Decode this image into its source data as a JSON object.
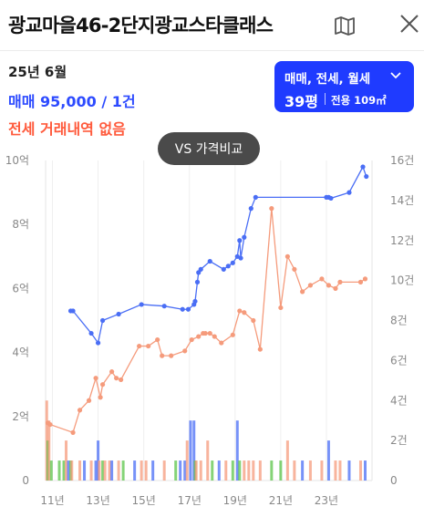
{
  "header": {
    "title": "광교마을46-2단지광교스타클래스",
    "map_icon": "map-icon",
    "close_icon": "close-icon"
  },
  "summary": {
    "date": "25년 6월",
    "sale": "매매 95,000 / 1건",
    "jeonse": "전세 거래내역 없음"
  },
  "filter": {
    "types": "매매, 전세, 월세",
    "pyeong": "39평",
    "area": "전용 109㎡"
  },
  "compare_button": "VS 가격비교",
  "colors": {
    "sale": "#4a6ef5",
    "jeonse": "#f59b7c",
    "green": "#5cc44a",
    "accent": "#1f3bff"
  },
  "chart_data": {
    "type": "line",
    "x_ticks": [
      "11년",
      "13년",
      "15년",
      "17년",
      "19년",
      "21년",
      "23년"
    ],
    "y_left_ticks": [
      "0",
      "2억",
      "4억",
      "6억",
      "8억",
      "10억"
    ],
    "y_right_ticks": [
      "0",
      "2건",
      "4건",
      "6건",
      "8건",
      "10건",
      "12건",
      "14건",
      "16건"
    ],
    "xlim": [
      2010.7,
      2025.0
    ],
    "ylim_left": [
      0,
      10
    ],
    "ylim_right": [
      0,
      16
    ],
    "grid": "vertical",
    "series": [
      {
        "kind": "sale",
        "x": [
          2011.8,
          2011.9,
          2012.7,
          2013.0,
          2013.2,
          2013.9,
          2014.9,
          2015.9,
          2016.7,
          2016.95,
          2017.2,
          2017.25,
          2017.35,
          2017.4,
          2017.5,
          2017.9,
          2018.5,
          2018.7,
          2018.9,
          2019.1,
          2019.2,
          2019.25,
          2019.4,
          2019.7,
          2019.9,
          2023.0,
          2023.1,
          2023.2,
          2024.0,
          2024.6,
          2024.75
        ],
        "y": [
          5.3,
          5.3,
          4.6,
          4.3,
          5.0,
          5.2,
          5.5,
          5.45,
          5.35,
          5.35,
          5.5,
          5.6,
          6.2,
          6.5,
          6.6,
          6.85,
          6.6,
          6.7,
          6.8,
          7.0,
          7.5,
          6.95,
          7.6,
          8.5,
          8.85,
          8.85,
          8.85,
          8.82,
          9.0,
          9.8,
          9.5
        ]
      },
      {
        "kind": "jeonse",
        "x": [
          2010.8,
          2010.9,
          2011.9,
          2012.2,
          2012.6,
          2012.9,
          2013.1,
          2013.2,
          2013.6,
          2013.8,
          2014.0,
          2014.8,
          2015.2,
          2015.6,
          2015.8,
          2016.2,
          2016.8,
          2017.1,
          2017.4,
          2017.6,
          2017.7,
          2017.9,
          2018.1,
          2018.4,
          2018.9,
          2019.2,
          2019.4,
          2019.8,
          2020.1,
          2020.6,
          2021.0,
          2021.3,
          2021.6,
          2021.95,
          2022.3,
          2022.8,
          2023.1,
          2023.4,
          2023.6,
          2024.5,
          2024.7
        ],
        "y": [
          1.8,
          1.75,
          1.5,
          2.2,
          2.5,
          3.2,
          2.6,
          3.0,
          3.4,
          3.2,
          3.15,
          4.2,
          4.2,
          4.4,
          3.9,
          3.9,
          4.05,
          4.4,
          4.5,
          4.6,
          4.6,
          4.6,
          4.5,
          4.3,
          4.55,
          5.3,
          5.25,
          5.0,
          4.1,
          8.5,
          5.4,
          7.0,
          6.6,
          5.9,
          6.1,
          6.3,
          6.1,
          6.0,
          6.2,
          6.2,
          6.3
        ]
      }
    ],
    "volume": {
      "x": [
        2010.75,
        2010.8,
        2010.85,
        2010.95,
        2011.3,
        2011.5,
        2011.6,
        2011.7,
        2011.8,
        2011.85,
        2012.2,
        2012.4,
        2012.7,
        2012.9,
        2013.0,
        2013.05,
        2013.2,
        2013.3,
        2013.5,
        2013.6,
        2013.9,
        2014.1,
        2014.6,
        2014.9,
        2015.1,
        2015.4,
        2015.9,
        2016.4,
        2016.6,
        2016.8,
        2016.9,
        2017.05,
        2017.2,
        2017.25,
        2017.3,
        2017.5,
        2017.8,
        2018.0,
        2018.3,
        2018.6,
        2018.9,
        2019.1,
        2019.2,
        2019.4,
        2019.6,
        2019.8,
        2020.1,
        2020.6,
        2021.0,
        2021.3,
        2021.6,
        2021.95,
        2022.3,
        2022.8,
        2023.1,
        2023.4,
        2023.6,
        2024.0,
        2024.5,
        2024.7
      ],
      "counts": [
        4,
        2,
        3,
        1,
        1,
        1,
        2,
        1,
        1,
        1,
        1,
        1,
        1,
        1,
        2,
        1,
        1,
        1,
        1,
        1,
        1,
        1,
        1,
        1,
        1,
        1,
        1,
        1,
        1,
        1,
        2,
        3,
        3,
        1,
        1,
        1,
        2,
        1,
        1,
        1,
        1,
        3,
        1,
        1,
        1,
        1,
        1,
        1,
        1,
        2,
        1,
        1,
        1,
        1,
        2,
        1,
        1,
        1,
        1,
        1
      ],
      "kinds": [
        "jeonse",
        "green",
        "jeonse",
        "green",
        "green",
        "green",
        "jeonse",
        "sale",
        "green",
        "jeonse",
        "jeonse",
        "sale",
        "jeonse",
        "sale",
        "sale",
        "jeonse",
        "green",
        "jeonse",
        "jeonse",
        "sale",
        "jeonse",
        "green",
        "sale",
        "jeonse",
        "jeonse",
        "sale",
        "jeonse",
        "green",
        "sale",
        "sale",
        "jeonse",
        "sale",
        "sale",
        "green",
        "jeonse",
        "jeonse",
        "jeonse",
        "green",
        "sale",
        "jeonse",
        "green",
        "sale",
        "green",
        "jeonse",
        "jeonse",
        "jeonse",
        "jeonse",
        "green",
        "green",
        "jeonse",
        "jeonse",
        "sale",
        "jeonse",
        "jeonse",
        "sale",
        "jeonse",
        "jeonse",
        "sale",
        "jeonse",
        "sale"
      ]
    }
  }
}
